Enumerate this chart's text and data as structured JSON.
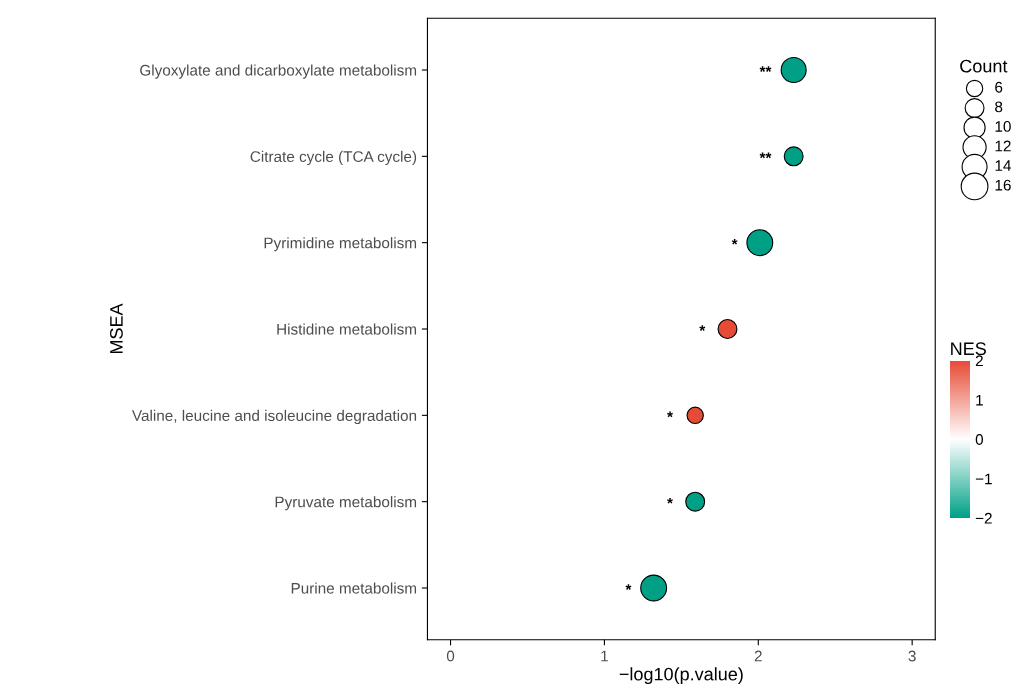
{
  "chart_data": {
    "type": "bubble",
    "xlabel": "−log10(p.value)",
    "ylabel": "MSEA",
    "legend_title": "Count",
    "clabel": "NES",
    "categories": [
      "Glyoxylate and dicarboxylate metabolism",
      "Citrate cycle (TCA cycle)",
      "Pyrimidine metabolism",
      "Histidine metabolism",
      "Valine, leucine and isoleucine degradation",
      "Pyruvate metabolism",
      "Purine metabolism"
    ],
    "values": [
      2.23,
      2.23,
      2.01,
      1.8,
      1.59,
      1.59,
      1.32
    ],
    "sizes": [
      14,
      8,
      15,
      8,
      6,
      8,
      15
    ],
    "cvalues": [
      -2,
      -2,
      -2,
      2,
      2,
      -2,
      -2
    ],
    "size_legend": [
      6,
      8,
      10,
      12,
      14,
      16
    ],
    "orientation": "horizontal",
    "clim": [
      -2,
      2
    ],
    "cticks": [
      2,
      1,
      0,
      -1,
      -2
    ],
    "xlim": [
      -0.15,
      3.15
    ],
    "xticks": [
      0,
      1,
      2,
      3
    ],
    "grid": false,
    "marker": "circle",
    "annotations": [
      {
        "text": "**",
        "x": 2.23,
        "y": "Glyoxylate and dicarboxylate metabolism"
      },
      {
        "text": "**",
        "x": 2.23,
        "y": "Citrate cycle (TCA cycle)"
      },
      {
        "text": "*",
        "x": 2.01,
        "y": "Pyrimidine metabolism"
      },
      {
        "text": "*",
        "x": 1.8,
        "y": "Histidine metabolism"
      },
      {
        "text": "*",
        "x": 1.59,
        "y": "Valine, leucine and isoleucine degradation"
      },
      {
        "text": "*",
        "x": 1.59,
        "y": "Pyruvate metabolism"
      },
      {
        "text": "*",
        "x": 1.32,
        "y": "Purine metabolism"
      }
    ]
  }
}
